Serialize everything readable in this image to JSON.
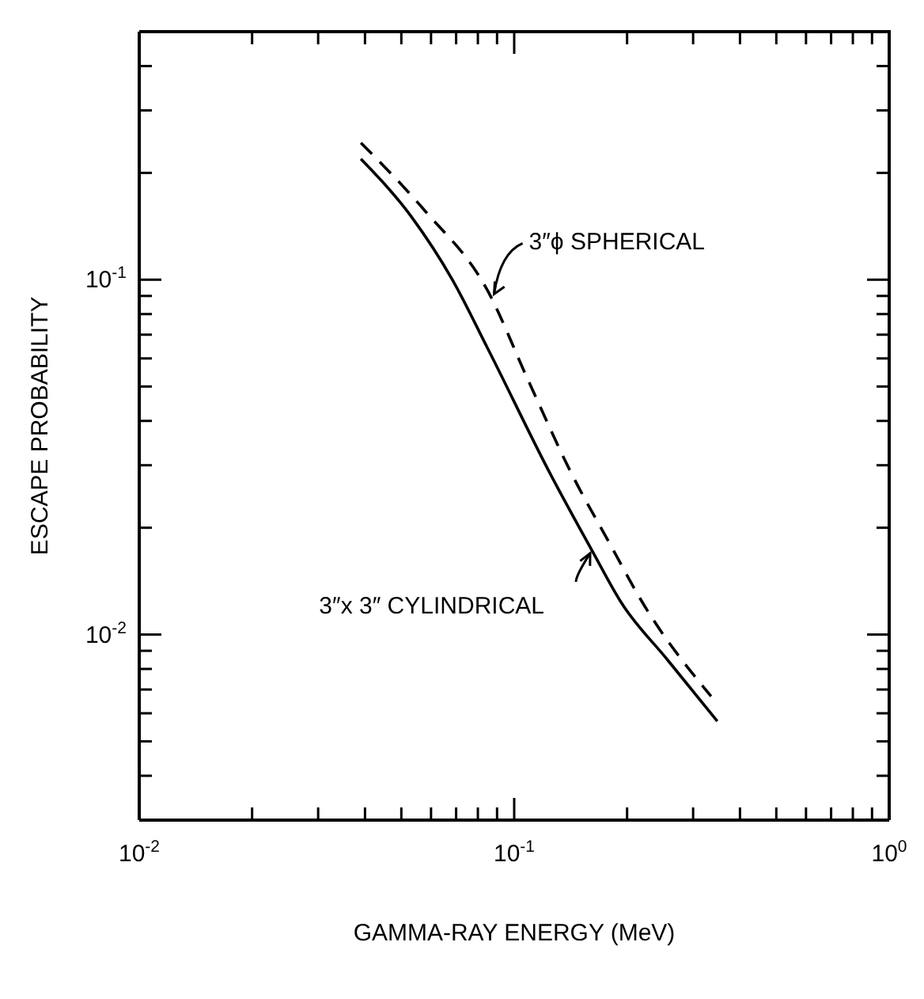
{
  "chart_data": {
    "type": "line",
    "xlabel": "GAMMA-RAY ENERGY (MeV)",
    "ylabel": "ESCAPE PROBABILITY",
    "log": "xy",
    "xlim": [
      0.01,
      1
    ],
    "ylim": [
      0.003,
      0.5
    ],
    "xticks": [
      {
        "value": 0.01,
        "label": "10$^{-2}$"
      },
      {
        "value": 0.02,
        "label": null
      },
      {
        "value": 0.03,
        "label": null
      },
      {
        "value": 0.04,
        "label": null
      },
      {
        "value": 0.05,
        "label": null
      },
      {
        "value": 0.06,
        "label": null
      },
      {
        "value": 0.07,
        "label": null
      },
      {
        "value": 0.08,
        "label": null
      },
      {
        "value": 0.09,
        "label": null
      },
      {
        "value": 0.1,
        "label": "10$^{-1}$"
      },
      {
        "value": 0.2,
        "label": null
      },
      {
        "value": 0.3,
        "label": null
      },
      {
        "value": 0.4,
        "label": null
      },
      {
        "value": 0.5,
        "label": null
      },
      {
        "value": 0.6,
        "label": null
      },
      {
        "value": 0.7,
        "label": null
      },
      {
        "value": 0.8,
        "label": null
      },
      {
        "value": 0.9,
        "label": null
      },
      {
        "value": 1,
        "label": "10$^{0}$"
      }
    ],
    "yticks": [
      {
        "value": 0.004,
        "label": null
      },
      {
        "value": 0.005,
        "label": null
      },
      {
        "value": 0.006,
        "label": null
      },
      {
        "value": 0.007,
        "label": null
      },
      {
        "value": 0.008,
        "label": null
      },
      {
        "value": 0.009,
        "label": null
      },
      {
        "value": 0.01,
        "label": "10$^{-2}$"
      },
      {
        "value": 0.02,
        "label": null
      },
      {
        "value": 0.03,
        "label": null
      },
      {
        "value": 0.04,
        "label": null
      },
      {
        "value": 0.05,
        "label": null
      },
      {
        "value": 0.06,
        "label": null
      },
      {
        "value": 0.07,
        "label": null
      },
      {
        "value": 0.08,
        "label": null
      },
      {
        "value": 0.09,
        "label": null
      },
      {
        "value": 0.1,
        "label": "10$^{-1}$"
      },
      {
        "value": 0.2,
        "label": null
      },
      {
        "value": 0.3,
        "label": null
      },
      {
        "value": 0.4,
        "label": null
      }
    ],
    "marker": "none",
    "series": [
      {
        "color": "#000000",
        "line_style": "solid",
        "x": [
          0.039,
          0.0533,
          0.0684,
          0.085,
          0.1256,
          0.161,
          0.193,
          0.256,
          0.348
        ],
        "values": [
          0.219,
          0.15,
          0.1,
          0.064,
          0.028,
          0.0173,
          0.0123,
          0.0085,
          0.0057
        ]
      },
      {
        "color": "#000000",
        "line_style": "dashed",
        "x": [
          0.039,
          0.0576,
          0.085,
          0.109,
          0.142,
          0.18,
          0.222,
          0.335
        ],
        "values": [
          0.243,
          0.157,
          0.093,
          0.052,
          0.0285,
          0.018,
          0.0121,
          0.0067
        ]
      }
    ],
    "annotations": [
      {
        "text": "3″ϕ SPHERICAL",
        "x": 0.085,
        "y": 0.093
      },
      {
        "text": "3″x 3″ CYLINDRICAL",
        "x": 0.161,
        "y": 0.0173
      }
    ]
  }
}
